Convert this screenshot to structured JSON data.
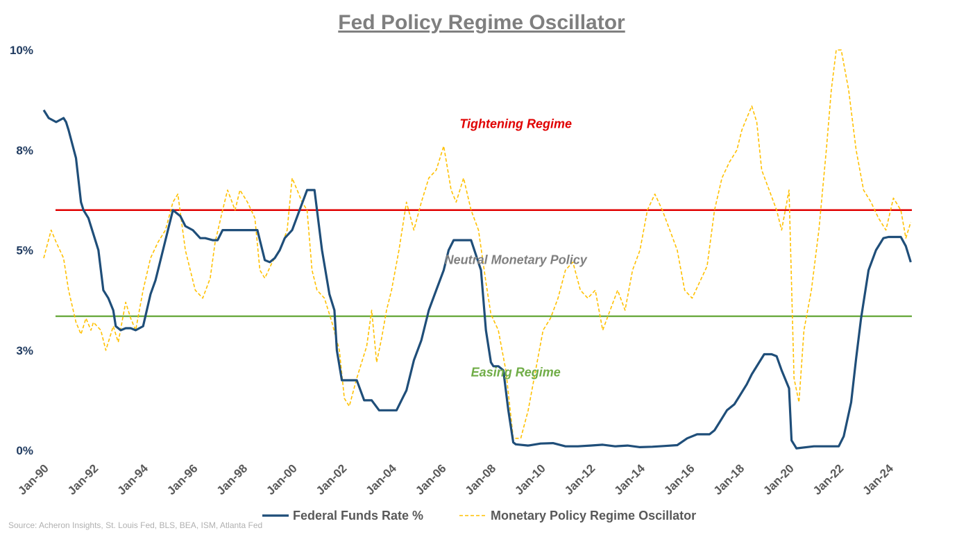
{
  "chart_data": {
    "type": "line",
    "title": "Fed Policy Regime Oscillator",
    "source": "Source: Acheron Insights, St. Louis Fed, BLS, BEA, ISM, Atlanta Fed",
    "ylim": [
      0,
      10
    ],
    "xlim": [
      1990.0,
      2025.0
    ],
    "y_ticks": [
      {
        "value": 0,
        "label": "0%"
      },
      {
        "value": 2.5,
        "label": "3%"
      },
      {
        "value": 5,
        "label": "5%"
      },
      {
        "value": 7.5,
        "label": "8%"
      },
      {
        "value": 10,
        "label": "10%"
      }
    ],
    "x_ticks": [
      {
        "value": 1990,
        "label": "Jan-90"
      },
      {
        "value": 1992,
        "label": "Jan-92"
      },
      {
        "value": 1994,
        "label": "Jan-94"
      },
      {
        "value": 1996,
        "label": "Jan-96"
      },
      {
        "value": 1998,
        "label": "Jan-98"
      },
      {
        "value": 2000,
        "label": "Jan-00"
      },
      {
        "value": 2002,
        "label": "Jan-02"
      },
      {
        "value": 2004,
        "label": "Jan-04"
      },
      {
        "value": 2006,
        "label": "Jan-06"
      },
      {
        "value": 2008,
        "label": "Jan-08"
      },
      {
        "value": 2010,
        "label": "Jan-10"
      },
      {
        "value": 2012,
        "label": "Jan-12"
      },
      {
        "value": 2014,
        "label": "Jan-14"
      },
      {
        "value": 2016,
        "label": "Jan-16"
      },
      {
        "value": 2018,
        "label": "Jan-18"
      },
      {
        "value": 2020,
        "label": "Jan-20"
      },
      {
        "value": 2022,
        "label": "Jan-22"
      },
      {
        "value": 2024,
        "label": "Jan-24"
      }
    ],
    "thresholds": [
      {
        "name": "tightening-threshold",
        "value": 6.0,
        "color": "#e00000"
      },
      {
        "name": "easing-threshold",
        "value": 3.35,
        "color": "#70ad47"
      }
    ],
    "annotations": [
      {
        "name": "tightening-regime-label",
        "text": "Tightening Regime",
        "x": 2009.0,
        "y": 8.05,
        "color": "#e00000"
      },
      {
        "name": "neutral-policy-label",
        "text": "Neutral Monetary Policy",
        "x": 2009.0,
        "y": 4.65,
        "color": "#808080"
      },
      {
        "name": "easing-regime-label",
        "text": "Easing Regime",
        "x": 2009.0,
        "y": 1.85,
        "color": "#70ad47"
      }
    ],
    "series": [
      {
        "name": "Federal Funds Rate %",
        "color": "#1f4e79",
        "style": "solid",
        "x": [
          1990.0,
          1990.2,
          1990.5,
          1990.8,
          1990.9,
          1991.0,
          1991.3,
          1991.5,
          1991.6,
          1991.8,
          1991.9,
          1992.2,
          1992.4,
          1992.6,
          1992.8,
          1992.9,
          1993.1,
          1993.3,
          1993.5,
          1993.7,
          1994.0,
          1994.3,
          1994.5,
          1994.7,
          1995.0,
          1995.2,
          1995.5,
          1995.7,
          1996.0,
          1996.3,
          1996.5,
          1996.8,
          1997.0,
          1997.2,
          1997.5,
          1997.8,
          1998.0,
          1998.3,
          1998.6,
          1998.9,
          1999.1,
          1999.3,
          1999.5,
          1999.7,
          2000.0,
          2000.3,
          2000.6,
          2000.9,
          2001.0,
          2001.2,
          2001.5,
          2001.7,
          2001.8,
          2002.0,
          2002.3,
          2002.6,
          2002.9,
          2003.2,
          2003.5,
          2003.8,
          2004.2,
          2004.4,
          2004.6,
          2004.9,
          2005.2,
          2005.5,
          2005.8,
          2006.1,
          2006.3,
          2006.5,
          2006.8,
          2007.2,
          2007.6,
          2007.8,
          2008.0,
          2008.1,
          2008.3,
          2008.5,
          2008.7,
          2008.9,
          2009.0,
          2009.5,
          2010.0,
          2010.5,
          2011.0,
          2011.5,
          2012.0,
          2012.5,
          2013.0,
          2013.5,
          2014.0,
          2014.5,
          2015.0,
          2015.5,
          2015.9,
          2016.3,
          2016.8,
          2017.0,
          2017.2,
          2017.5,
          2017.8,
          2018.0,
          2018.3,
          2018.5,
          2018.8,
          2019.0,
          2019.3,
          2019.5,
          2019.7,
          2020.0,
          2020.1,
          2020.3,
          2021.0,
          2021.5,
          2022.0,
          2022.2,
          2022.5,
          2022.7,
          2022.9,
          2023.2,
          2023.5,
          2023.8,
          2024.0,
          2024.5,
          2024.7,
          2024.9
        ],
        "values": [
          8.5,
          8.3,
          8.2,
          8.3,
          8.2,
          8.0,
          7.3,
          6.2,
          6.0,
          5.8,
          5.6,
          5.0,
          4.0,
          3.8,
          3.5,
          3.1,
          3.0,
          3.05,
          3.05,
          3.0,
          3.1,
          3.9,
          4.25,
          4.75,
          5.5,
          6.0,
          5.85,
          5.6,
          5.5,
          5.3,
          5.3,
          5.25,
          5.25,
          5.5,
          5.5,
          5.5,
          5.5,
          5.5,
          5.5,
          4.75,
          4.7,
          4.8,
          5.0,
          5.3,
          5.5,
          6.0,
          6.5,
          6.5,
          6.0,
          5.0,
          3.9,
          3.5,
          2.5,
          1.75,
          1.75,
          1.75,
          1.25,
          1.25,
          1.0,
          1.0,
          1.0,
          1.25,
          1.5,
          2.25,
          2.75,
          3.5,
          4.0,
          4.5,
          5.0,
          5.25,
          5.25,
          5.25,
          4.5,
          3.0,
          2.2,
          2.1,
          2.1,
          2.0,
          1.0,
          0.2,
          0.15,
          0.12,
          0.17,
          0.18,
          0.1,
          0.1,
          0.12,
          0.14,
          0.1,
          0.12,
          0.08,
          0.09,
          0.11,
          0.13,
          0.3,
          0.4,
          0.4,
          0.5,
          0.7,
          1.0,
          1.15,
          1.35,
          1.65,
          1.9,
          2.2,
          2.4,
          2.4,
          2.35,
          2.0,
          1.55,
          0.25,
          0.05,
          0.1,
          0.1,
          0.1,
          0.35,
          1.2,
          2.3,
          3.3,
          4.5,
          5.0,
          5.3,
          5.33,
          5.33,
          5.1,
          4.7
        ]
      },
      {
        "name": "Monetary Policy Regime Oscillator",
        "color": "#ffc000",
        "style": "dashed",
        "x": [
          1990.0,
          1990.3,
          1990.5,
          1990.8,
          1991.0,
          1991.3,
          1991.5,
          1991.7,
          1991.9,
          1992.0,
          1992.3,
          1992.5,
          1992.8,
          1993.0,
          1993.3,
          1993.5,
          1993.7,
          1994.0,
          1994.3,
          1994.6,
          1994.9,
          1995.2,
          1995.4,
          1995.7,
          1995.9,
          1996.1,
          1996.4,
          1996.7,
          1996.9,
          1997.2,
          1997.4,
          1997.7,
          1997.9,
          1998.2,
          1998.5,
          1998.7,
          1998.9,
          1999.2,
          1999.5,
          1999.8,
          2000.0,
          2000.2,
          2000.4,
          2000.6,
          2000.8,
          2001.0,
          2001.3,
          2001.6,
          2001.9,
          2002.1,
          2002.3,
          2002.6,
          2002.8,
          2003.0,
          2003.2,
          2003.4,
          2003.6,
          2003.8,
          2004.0,
          2004.3,
          2004.6,
          2004.9,
          2005.2,
          2005.5,
          2005.8,
          2006.1,
          2006.4,
          2006.6,
          2006.9,
          2007.2,
          2007.5,
          2007.8,
          2008.0,
          2008.3,
          2008.6,
          2008.9,
          2009.2,
          2009.5,
          2009.8,
          2010.1,
          2010.4,
          2010.7,
          2011.0,
          2011.3,
          2011.6,
          2011.9,
          2012.2,
          2012.5,
          2012.8,
          2013.1,
          2013.4,
          2013.7,
          2014.0,
          2014.3,
          2014.6,
          2014.9,
          2015.2,
          2015.5,
          2015.8,
          2016.1,
          2016.4,
          2016.7,
          2017.0,
          2017.3,
          2017.6,
          2017.9,
          2018.1,
          2018.3,
          2018.5,
          2018.7,
          2018.9,
          2019.2,
          2019.5,
          2019.7,
          2020.0,
          2020.2,
          2020.4,
          2020.6,
          2020.9,
          2021.2,
          2021.5,
          2021.7,
          2021.9,
          2022.1,
          2022.4,
          2022.7,
          2023.0,
          2023.3,
          2023.6,
          2023.9,
          2024.2,
          2024.5,
          2024.7,
          2024.9
        ],
        "values": [
          4.8,
          5.5,
          5.2,
          4.8,
          4.0,
          3.2,
          2.9,
          3.3,
          3.0,
          3.2,
          3.0,
          2.5,
          3.1,
          2.7,
          3.7,
          3.3,
          3.0,
          4.0,
          4.8,
          5.2,
          5.5,
          6.2,
          6.4,
          5.0,
          4.5,
          4.0,
          3.8,
          4.3,
          5.2,
          6.0,
          6.5,
          6.0,
          6.5,
          6.2,
          5.8,
          4.5,
          4.3,
          4.7,
          5.0,
          5.5,
          6.8,
          6.5,
          6.2,
          6.0,
          4.5,
          4.0,
          3.8,
          3.2,
          2.5,
          1.3,
          1.1,
          1.8,
          2.2,
          2.6,
          3.5,
          2.2,
          2.8,
          3.5,
          4.0,
          5.0,
          6.2,
          5.5,
          6.2,
          6.8,
          7.0,
          7.6,
          6.5,
          6.2,
          6.8,
          6.0,
          5.5,
          4.2,
          3.4,
          3.0,
          2.0,
          0.3,
          0.3,
          1.0,
          2.0,
          3.0,
          3.3,
          3.8,
          4.5,
          4.7,
          4.0,
          3.8,
          4.0,
          3.0,
          3.5,
          4.0,
          3.5,
          4.5,
          5.0,
          6.0,
          6.4,
          6.0,
          5.5,
          5.0,
          4.0,
          3.8,
          4.2,
          4.6,
          6.0,
          6.8,
          7.2,
          7.5,
          8.0,
          8.3,
          8.6,
          8.2,
          7.0,
          6.5,
          6.0,
          5.5,
          6.5,
          1.8,
          1.2,
          3.0,
          4.0,
          5.5,
          7.5,
          9.0,
          10.0,
          10.0,
          9.0,
          7.5,
          6.5,
          6.2,
          5.8,
          5.5,
          6.3,
          6.0,
          5.3,
          5.7
        ]
      }
    ]
  }
}
